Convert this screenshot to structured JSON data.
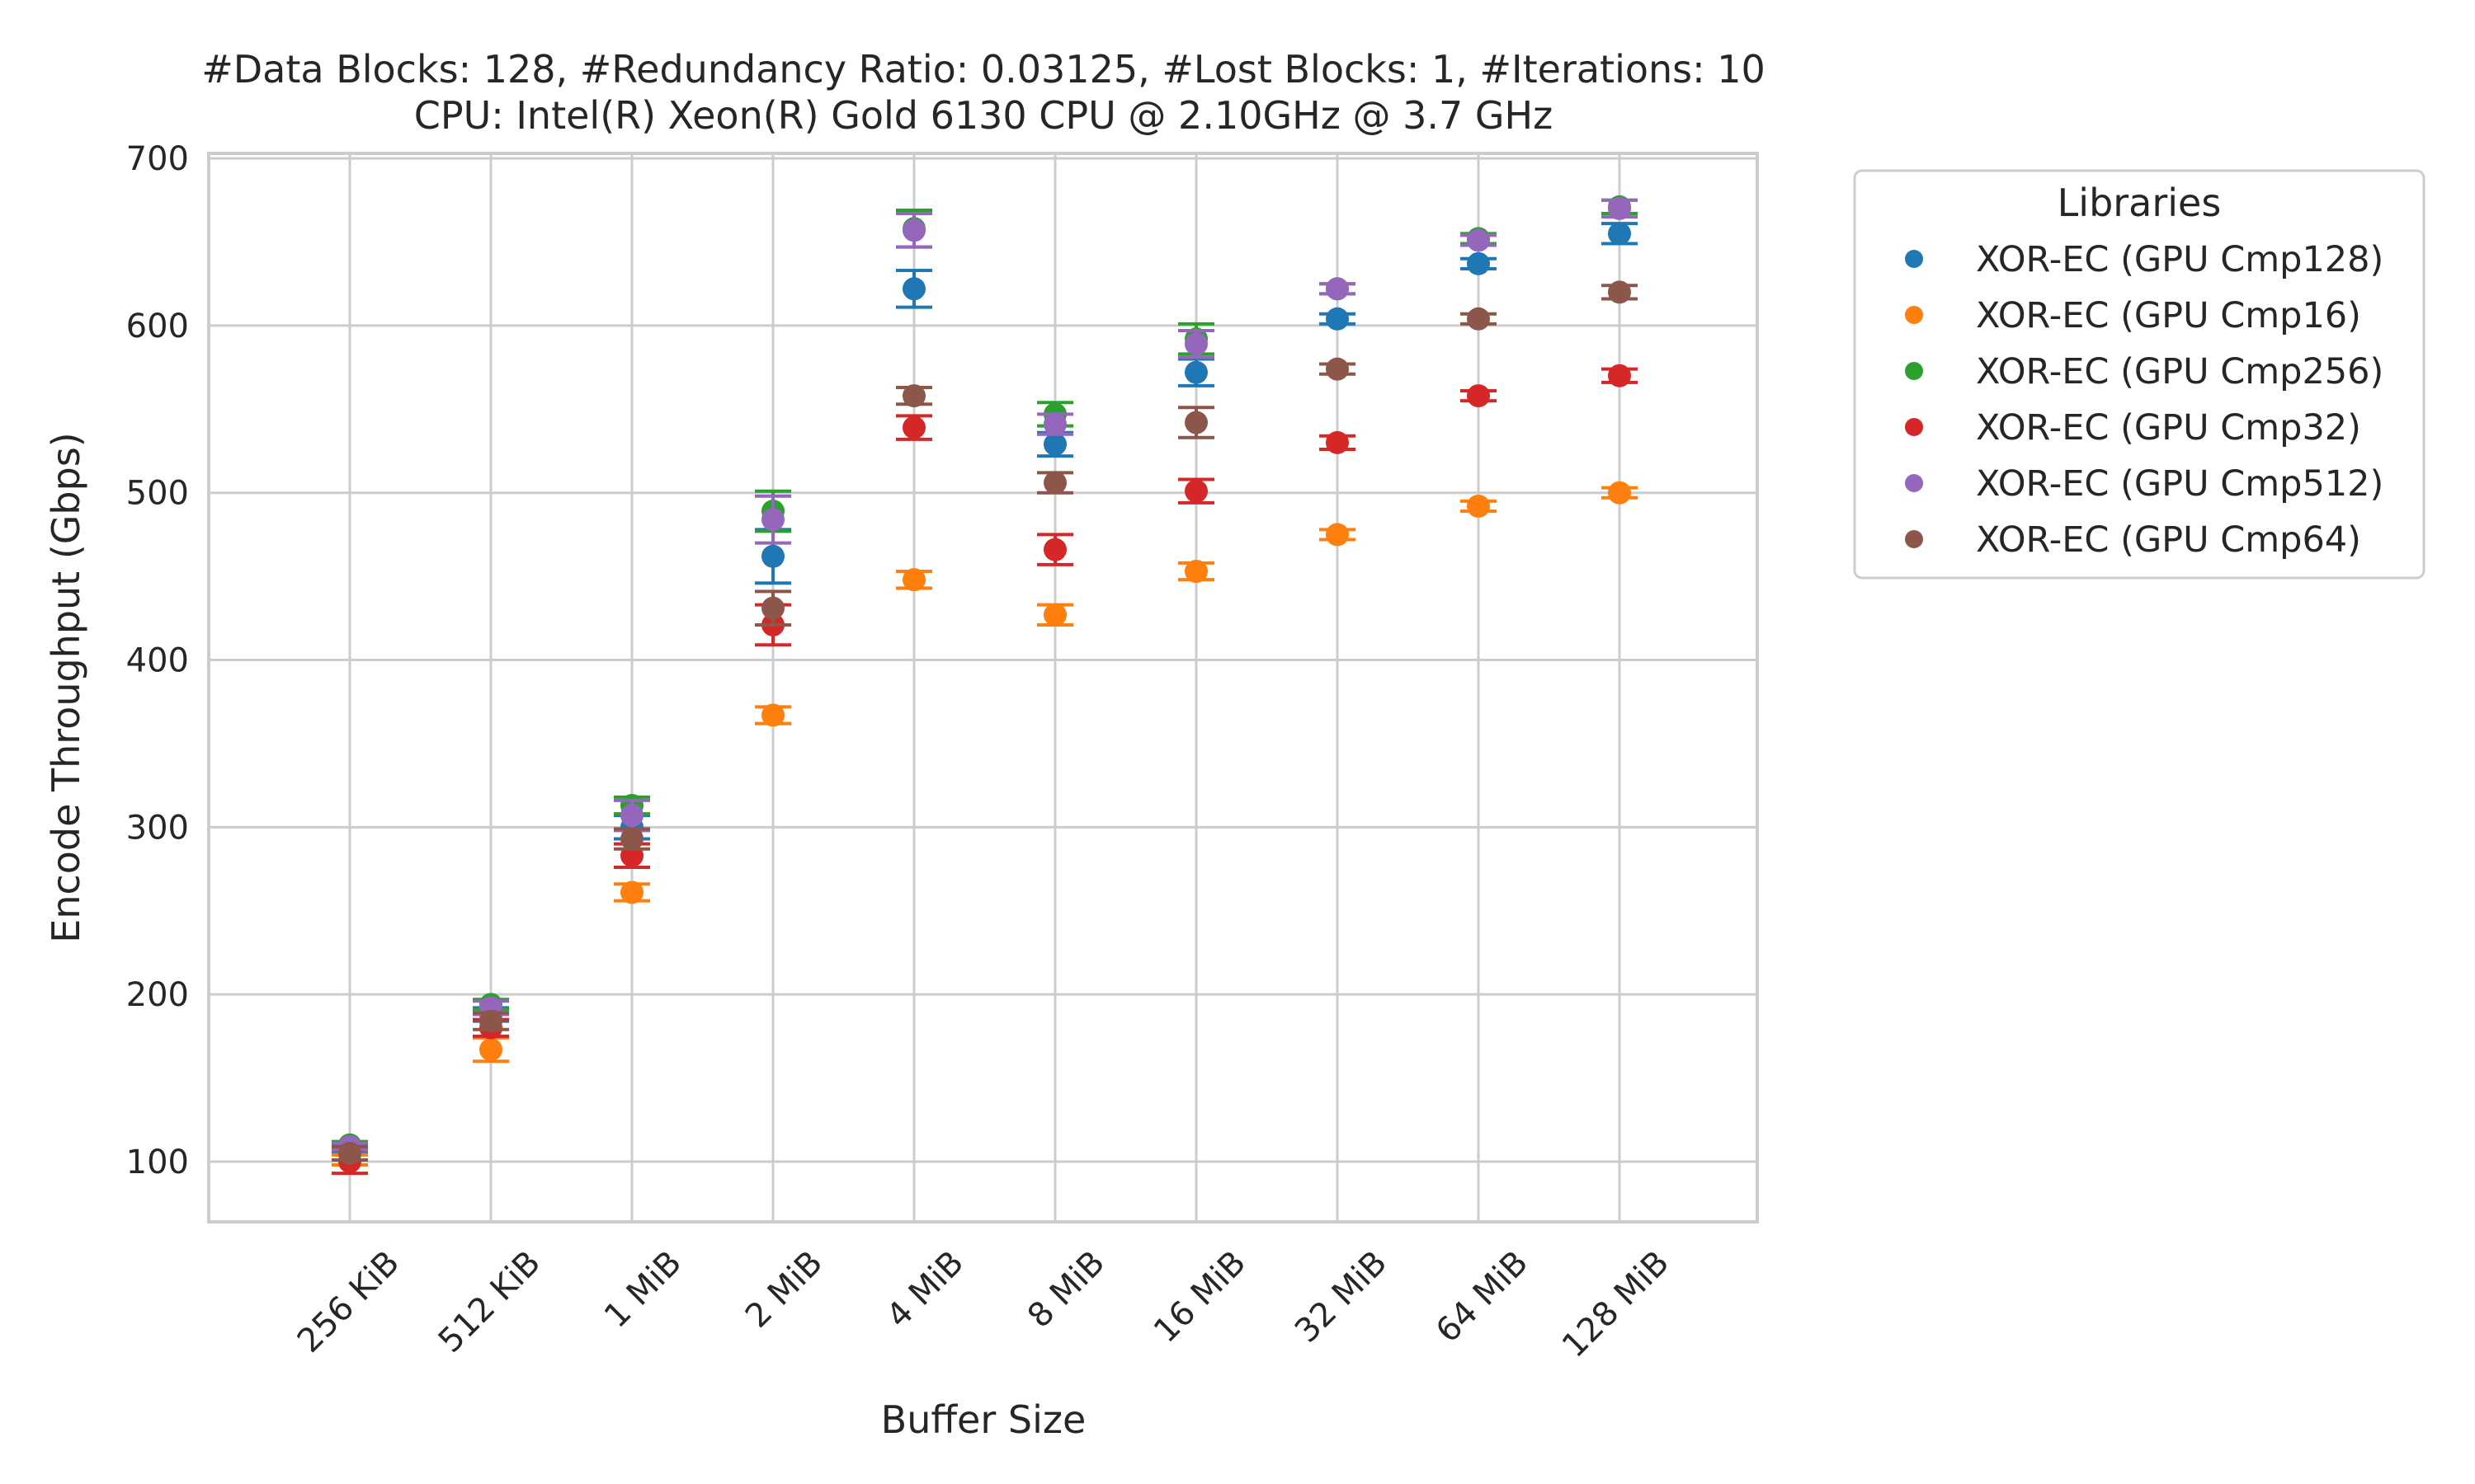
{
  "chart_data": {
    "type": "scatter",
    "title": "#Data Blocks: 128, #Redundancy Ratio: 0.03125, #Lost Blocks: 1, #Iterations: 10",
    "subtitle": "CPU: Intel(R) Xeon(R) Gold 6130 CPU @ 2.10GHz @ 3.7 GHz",
    "xlabel": "Buffer Size",
    "ylabel": "Encode Throughput (Gbps)",
    "categories": [
      "256 KiB",
      "512 KiB",
      "1 MiB",
      "2 MiB",
      "4 MiB",
      "8 MiB",
      "16 MiB",
      "32 MiB",
      "64 MiB",
      "128 MiB"
    ],
    "ylim": [
      64,
      703
    ],
    "yticks": [
      100,
      200,
      300,
      400,
      500,
      600,
      700
    ],
    "grid": true,
    "legend": {
      "title": "Libraries",
      "placement": "outside-right"
    },
    "series": [
      {
        "name": "XOR-EC (GPU Cmp128)",
        "color": "#1f77b4",
        "values": [
          108,
          188,
          300,
          462,
          622,
          529,
          572,
          604,
          637,
          655
        ],
        "err": [
          2,
          4,
          7,
          16,
          11,
          7,
          8,
          3,
          3,
          6
        ]
      },
      {
        "name": "XOR-EC (GPU Cmp16)",
        "color": "#ff7f0e",
        "values": [
          101,
          167,
          261,
          367,
          448,
          427,
          453,
          475,
          492,
          500
        ],
        "err": [
          3,
          7,
          5,
          5,
          5,
          6,
          5,
          3,
          3,
          3
        ]
      },
      {
        "name": "XOR-EC (GPU Cmp256)",
        "color": "#2ca02c",
        "values": [
          110,
          194,
          313,
          489,
          658,
          547,
          592,
          622,
          652,
          671
        ],
        "err": [
          2,
          3,
          5,
          12,
          11,
          7,
          9,
          3,
          3,
          4
        ]
      },
      {
        "name": "XOR-EC (GPU Cmp32)",
        "color": "#d62728",
        "values": [
          100,
          180,
          283,
          421,
          539,
          466,
          501,
          530,
          558,
          570
        ],
        "err": [
          7,
          5,
          7,
          12,
          7,
          9,
          7,
          4,
          3,
          4
        ]
      },
      {
        "name": "XOR-EC (GPU Cmp512)",
        "color": "#9467bd",
        "values": [
          109,
          192,
          307,
          484,
          657,
          541,
          589,
          622,
          651,
          670
        ],
        "err": [
          2,
          4,
          9,
          14,
          10,
          6,
          8,
          3,
          3,
          5
        ]
      },
      {
        "name": "XOR-EC (GPU Cmp64)",
        "color": "#8c564b",
        "values": [
          105,
          184,
          293,
          431,
          558,
          506,
          542,
          574,
          604,
          620
        ],
        "err": [
          4,
          5,
          6,
          10,
          5,
          6,
          9,
          3,
          3,
          4
        ]
      }
    ]
  }
}
